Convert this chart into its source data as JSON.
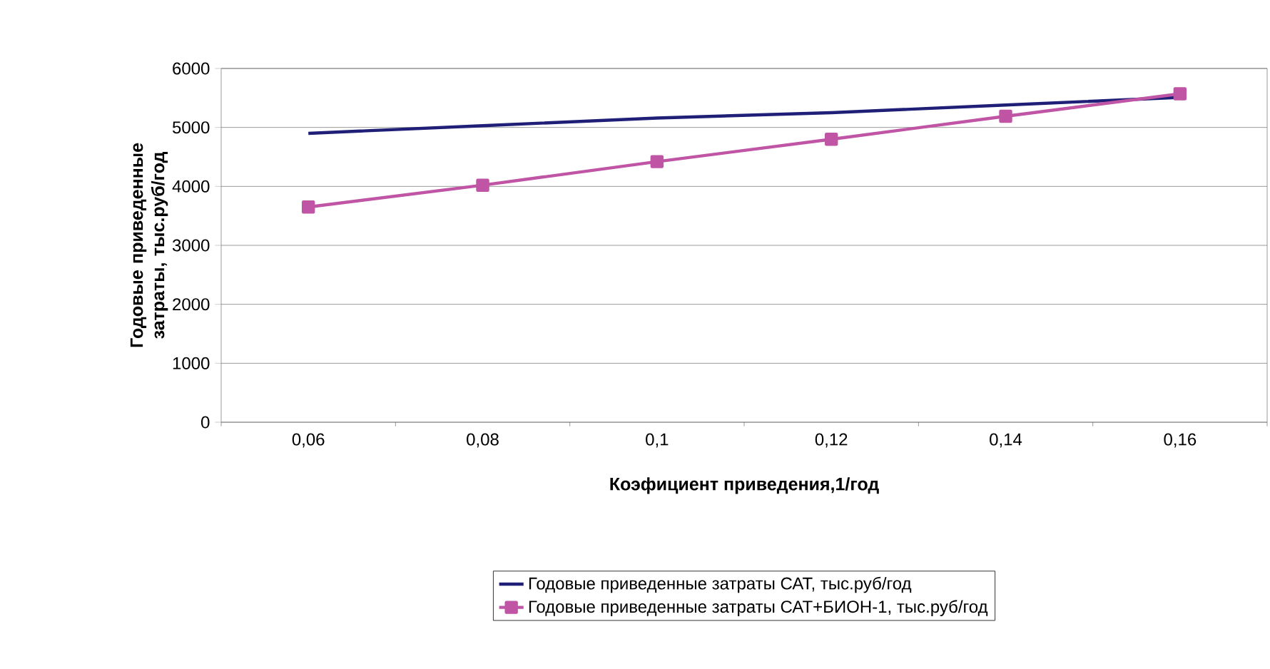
{
  "chart_data": {
    "type": "line",
    "xlabel": "Коэфициент приведения,1/год",
    "ylabel": "Годовые приведенные затраты, тыс.руб/год",
    "categories": [
      "0,06",
      "0,08",
      "0,1",
      "0,12",
      "0,14",
      "0,16"
    ],
    "series": [
      {
        "name": "Годовые приведенные затраты САТ, тыс.руб/год",
        "color": "#1f1f78",
        "marker": "none",
        "values": [
          4900,
          5030,
          5160,
          5250,
          5380,
          5510
        ]
      },
      {
        "name": "Годовые приведенные затраты САТ+БИОН-1, тыс.руб/год",
        "color": "#bf55a4",
        "marker": "square",
        "values": [
          3650,
          4020,
          4420,
          4800,
          5190,
          5570
        ]
      }
    ],
    "ylim": [
      0,
      6000
    ],
    "yticks": [
      0,
      1000,
      2000,
      3000,
      4000,
      5000,
      6000
    ],
    "grid": "y",
    "legend": "bottom"
  }
}
